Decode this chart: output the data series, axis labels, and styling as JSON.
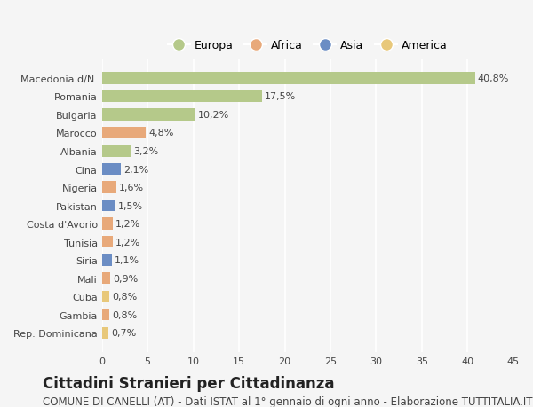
{
  "countries": [
    "Macedonia d/N.",
    "Romania",
    "Bulgaria",
    "Marocco",
    "Albania",
    "Cina",
    "Nigeria",
    "Pakistan",
    "Costa d'Avorio",
    "Tunisia",
    "Siria",
    "Mali",
    "Cuba",
    "Gambia",
    "Rep. Dominicana"
  ],
  "values": [
    40.8,
    17.5,
    10.2,
    4.8,
    3.2,
    2.1,
    1.6,
    1.5,
    1.2,
    1.2,
    1.1,
    0.9,
    0.8,
    0.8,
    0.7
  ],
  "labels": [
    "40,8%",
    "17,5%",
    "10,2%",
    "4,8%",
    "3,2%",
    "2,1%",
    "1,6%",
    "1,5%",
    "1,2%",
    "1,2%",
    "1,1%",
    "0,9%",
    "0,8%",
    "0,8%",
    "0,7%"
  ],
  "colors": [
    "#b5c98a",
    "#b5c98a",
    "#b5c98a",
    "#e8a97a",
    "#b5c98a",
    "#6b8dc4",
    "#e8a97a",
    "#6b8dc4",
    "#e8a97a",
    "#e8a97a",
    "#6b8dc4",
    "#e8a97a",
    "#e8c87a",
    "#e8a97a",
    "#e8c87a"
  ],
  "legend_labels": [
    "Europa",
    "Africa",
    "Asia",
    "America"
  ],
  "legend_colors": [
    "#b5c98a",
    "#e8a97a",
    "#6b8dc4",
    "#e8c87a"
  ],
  "xlim": [
    0,
    45
  ],
  "xticks": [
    0,
    5,
    10,
    15,
    20,
    25,
    30,
    35,
    40,
    45
  ],
  "title": "Cittadini Stranieri per Cittadinanza",
  "subtitle": "COMUNE DI CANELLI (AT) - Dati ISTAT al 1° gennaio di ogni anno - Elaborazione TUTTITALIA.IT",
  "bg_color": "#f5f5f5",
  "grid_color": "#ffffff",
  "title_fontsize": 12,
  "subtitle_fontsize": 8.5,
  "label_fontsize": 8,
  "tick_fontsize": 8
}
